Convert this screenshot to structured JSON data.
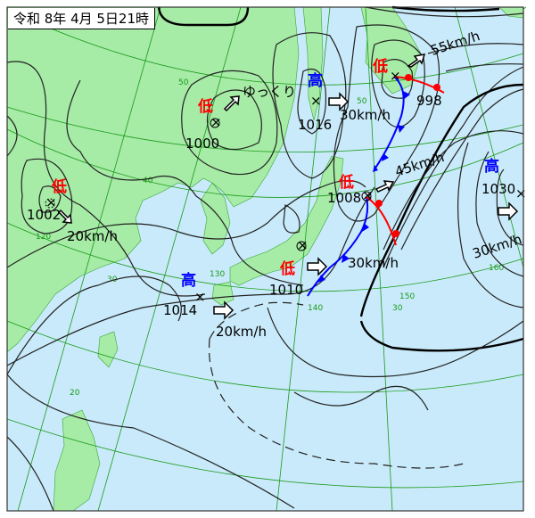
{
  "title": "令和 8年 4月 5日21時",
  "colors": {
    "sea": "#c9eafa",
    "land": "#a6eba6",
    "low": "#ff0000",
    "high": "#0000ff",
    "grid": "#1a9a1a",
    "cold_front": "#0000ff",
    "warm_front": "#ff0000"
  },
  "grid_labels": {
    "lat50": "50",
    "lat40": "40",
    "lat30": "30",
    "lat20": "20",
    "lon120": "120",
    "lon130": "130",
    "lon140": "140",
    "lon150": "150",
    "lon160": "160",
    "lat50b": "50",
    "lat30b": "30"
  },
  "systems": [
    {
      "type": "低",
      "pressure": "1000",
      "movement": "ゆっくり"
    },
    {
      "type": "低",
      "pressure": "1002",
      "movement": "20km/h"
    },
    {
      "type": "高",
      "pressure": "1016",
      "movement": "30km/h"
    },
    {
      "type": "低",
      "pressure": "998",
      "movement": "55km/h"
    },
    {
      "type": "低",
      "pressure": "1008",
      "movement": "45km/h"
    },
    {
      "type": "高",
      "pressure": "1030",
      "movement": "30km/h"
    },
    {
      "type": "低",
      "pressure": "1010",
      "movement": "30km/h"
    },
    {
      "type": "高",
      "pressure": "1014",
      "movement": "20km/h"
    }
  ]
}
